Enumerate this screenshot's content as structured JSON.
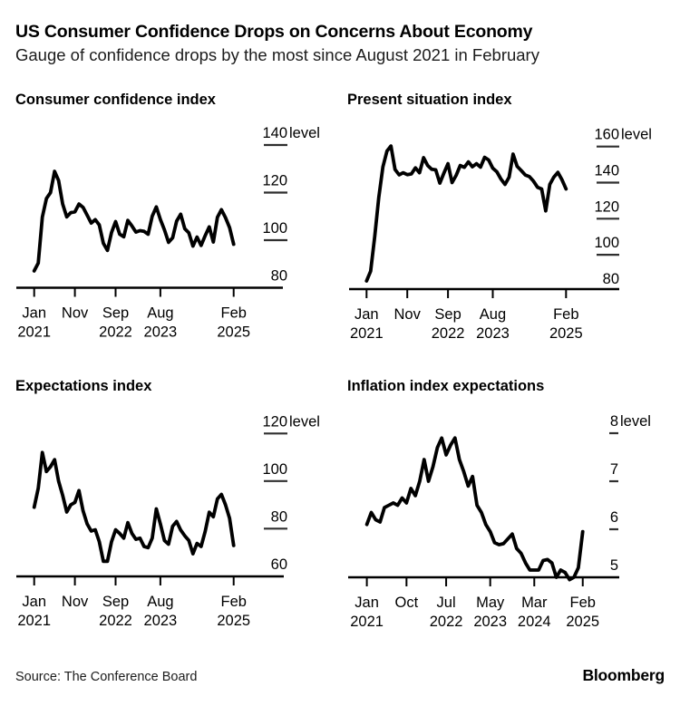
{
  "header": {
    "title": "US Consumer Confidence Drops on Concerns About Economy",
    "subtitle": "Gauge of confidence drops by the most since August 2021 in February"
  },
  "footer": {
    "source": "Source: The Conference Board",
    "brand": "Bloomberg"
  },
  "colors": {
    "background": "#ffffff",
    "text": "#000000",
    "line": "#000000",
    "axis": "#000000",
    "tick_dash": "#2f2f2f"
  },
  "chart_data": [
    {
      "type": "line",
      "title": "Consumer confidence index",
      "unit_label": "level",
      "frequency": "monthly",
      "grid": false,
      "legend": false,
      "ylim": [
        80,
        140
      ],
      "y_ticks": [
        140,
        120,
        100,
        80
      ],
      "x_ticks": [
        {
          "label": "Jan",
          "year": "2021",
          "month_index": 0
        },
        {
          "label": "Nov",
          "year": "",
          "month_index": 10
        },
        {
          "label": "Sep",
          "year": "2022",
          "month_index": 20
        },
        {
          "label": "Aug",
          "year": "2023",
          "month_index": 31
        },
        {
          "label": "Feb",
          "year": "2025",
          "month_index": 49
        }
      ],
      "values": [
        87.1,
        90.4,
        109.7,
        117.5,
        120.0,
        128.9,
        125.1,
        115.2,
        109.8,
        111.6,
        111.9,
        115.2,
        113.8,
        110.5,
        107.2,
        108.6,
        106.4,
        98.7,
        95.7,
        103.2,
        107.8,
        102.5,
        101.4,
        108.3,
        106.0,
        103.4,
        104.0,
        103.7,
        102.5,
        110.1,
        114.0,
        108.7,
        104.3,
        99.1,
        101.0,
        108.0,
        110.9,
        104.8,
        103.1,
        97.5,
        101.3,
        97.8,
        101.9,
        105.6,
        99.2,
        109.6,
        112.8,
        109.5,
        105.3,
        98.3
      ]
    },
    {
      "type": "line",
      "title": "Present situation index",
      "unit_label": "level",
      "frequency": "monthly",
      "grid": false,
      "legend": false,
      "ylim": [
        80,
        160
      ],
      "y_ticks": [
        160,
        140,
        120,
        100,
        80
      ],
      "x_ticks": [
        {
          "label": "Jan",
          "year": "2021",
          "month_index": 0
        },
        {
          "label": "Nov",
          "year": "",
          "month_index": 10
        },
        {
          "label": "Sep",
          "year": "2022",
          "month_index": 20
        },
        {
          "label": "Aug",
          "year": "2023",
          "month_index": 31
        },
        {
          "label": "Feb",
          "year": "2025",
          "month_index": 49
        }
      ],
      "values": [
        85.5,
        90.9,
        110.1,
        131.9,
        148.7,
        157.5,
        160.3,
        147.3,
        144.3,
        145.5,
        144.4,
        144.8,
        148.2,
        145.5,
        153.8,
        149.5,
        147.4,
        147.1,
        139.7,
        145.3,
        150.5,
        140.0,
        144.0,
        149.5,
        148.5,
        151.5,
        148.8,
        150.5,
        148.6,
        154.0,
        152.5,
        148.0,
        146.0,
        142.0,
        139.0,
        143.0,
        155.8,
        149.0,
        146.7,
        144.2,
        143.3,
        140.8,
        137.4,
        136.5,
        124.3,
        139.0,
        143.0,
        145.7,
        141.6,
        136.5
      ]
    },
    {
      "type": "line",
      "title": "Expectations index",
      "unit_label": "level",
      "frequency": "monthly",
      "grid": false,
      "legend": false,
      "ylim": [
        60,
        120
      ],
      "y_ticks": [
        120,
        100,
        80,
        60
      ],
      "x_ticks": [
        {
          "label": "Jan",
          "year": "2021",
          "month_index": 0
        },
        {
          "label": "Nov",
          "year": "",
          "month_index": 10
        },
        {
          "label": "Sep",
          "year": "2022",
          "month_index": 20
        },
        {
          "label": "Aug",
          "year": "2023",
          "month_index": 31
        },
        {
          "label": "Feb",
          "year": "2025",
          "month_index": 49
        }
      ],
      "values": [
        89.0,
        97.0,
        112.0,
        104.0,
        106.0,
        109.0,
        100.0,
        94.0,
        87.0,
        90.0,
        91.0,
        96.0,
        87.5,
        82.0,
        79.0,
        79.5,
        74.5,
        66.3,
        66.3,
        74.5,
        79.5,
        78.0,
        76.0,
        82.5,
        78.0,
        75.5,
        76.0,
        72.5,
        72.0,
        76.0,
        88.3,
        82.0,
        75.0,
        73.5,
        81.0,
        83.0,
        79.4,
        77.0,
        75.0,
        69.4,
        73.8,
        72.5,
        78.8,
        86.9,
        85.0,
        92.5,
        94.4,
        90.0,
        84.4,
        72.9
      ]
    },
    {
      "type": "line",
      "title": "Inflation index expectations",
      "unit_label": "level",
      "frequency": "monthly",
      "grid": false,
      "legend": false,
      "ylim": [
        5,
        8
      ],
      "y_ticks": [
        8,
        7,
        6,
        5
      ],
      "x_ticks": [
        {
          "label": "Jan",
          "year": "2021",
          "month_index": 0
        },
        {
          "label": "Oct",
          "year": "",
          "month_index": 9
        },
        {
          "label": "Jul",
          "year": "2022",
          "month_index": 18
        },
        {
          "label": "May",
          "year": "2023",
          "month_index": 28
        },
        {
          "label": "Mar",
          "year": "2024",
          "month_index": 38
        },
        {
          "label": "Feb",
          "year": "2025",
          "month_index": 49
        }
      ],
      "values": [
        6.1,
        6.35,
        6.2,
        6.15,
        6.45,
        6.5,
        6.55,
        6.5,
        6.65,
        6.55,
        6.85,
        6.7,
        7.0,
        7.45,
        7.0,
        7.3,
        7.7,
        7.9,
        7.55,
        7.75,
        7.9,
        7.45,
        7.2,
        6.9,
        7.1,
        6.5,
        6.35,
        6.1,
        5.95,
        5.72,
        5.68,
        5.7,
        5.8,
        5.9,
        5.6,
        5.5,
        5.3,
        5.15,
        5.15,
        5.15,
        5.35,
        5.37,
        5.3,
        5.0,
        5.15,
        5.1,
        4.95,
        5.0,
        5.2,
        5.95
      ]
    }
  ]
}
